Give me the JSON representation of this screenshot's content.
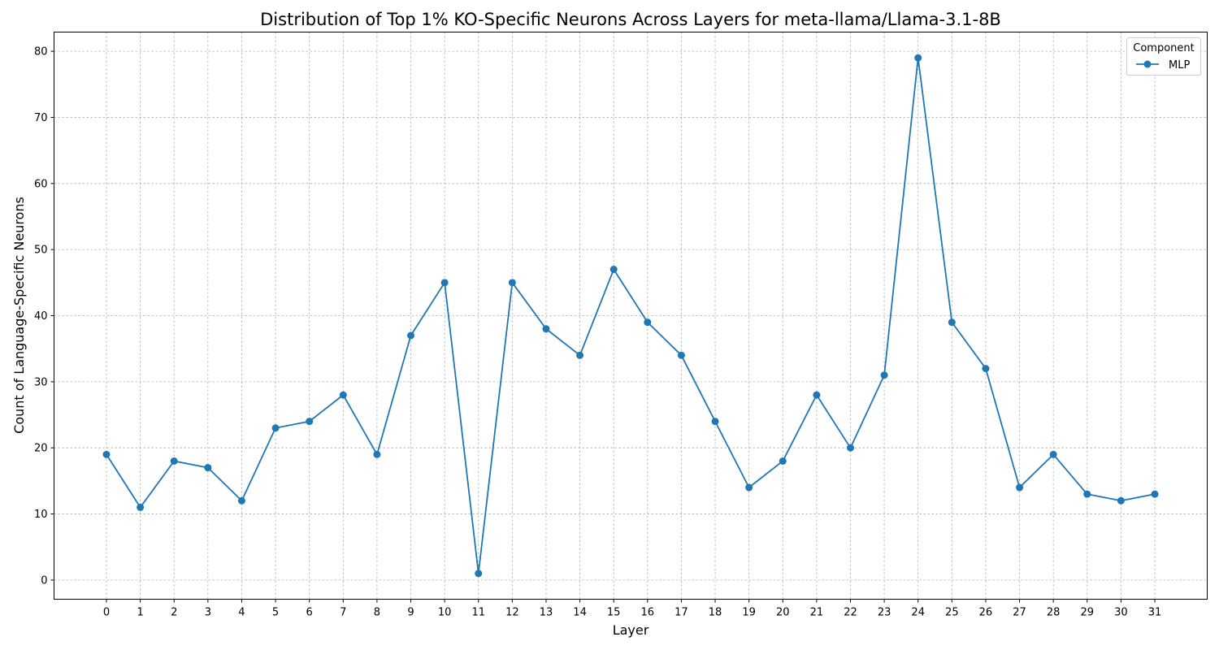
{
  "chart_data": {
    "type": "line",
    "title": "Distribution of Top 1% KO-Specific Neurons Across Layers for meta-llama/Llama-3.1-8B",
    "xlabel": "Layer",
    "ylabel": "Count of Language-Specific Neurons",
    "x": [
      0,
      1,
      2,
      3,
      4,
      5,
      6,
      7,
      8,
      9,
      10,
      11,
      12,
      13,
      14,
      15,
      16,
      17,
      18,
      19,
      20,
      21,
      22,
      23,
      24,
      25,
      26,
      27,
      28,
      29,
      30,
      31
    ],
    "x_tick_labels": [
      "0",
      "1",
      "2",
      "3",
      "4",
      "5",
      "6",
      "7",
      "8",
      "9",
      "10",
      "11",
      "12",
      "13",
      "14",
      "15",
      "16",
      "17",
      "18",
      "19",
      "20",
      "21",
      "22",
      "23",
      "24",
      "25",
      "26",
      "27",
      "28",
      "29",
      "30",
      "31"
    ],
    "y_ticks": [
      0,
      10,
      20,
      30,
      40,
      50,
      60,
      70,
      80
    ],
    "y_tick_labels": [
      "0",
      "10",
      "20",
      "30",
      "40",
      "50",
      "60",
      "70",
      "80"
    ],
    "xlim": [
      -1.55,
      32.55
    ],
    "ylim": [
      -2.9,
      82.9
    ],
    "grid": true,
    "legend": {
      "title": "Component",
      "placement": "top-right"
    },
    "series": [
      {
        "name": "MLP",
        "color": "#1f77b4",
        "marker": "circle",
        "values": [
          19,
          11,
          18,
          17,
          12,
          23,
          24,
          28,
          19,
          37,
          45,
          1,
          45,
          38,
          34,
          47,
          39,
          34,
          24,
          14,
          18,
          28,
          20,
          31,
          79,
          39,
          32,
          14,
          19,
          13,
          12,
          13
        ]
      }
    ]
  }
}
